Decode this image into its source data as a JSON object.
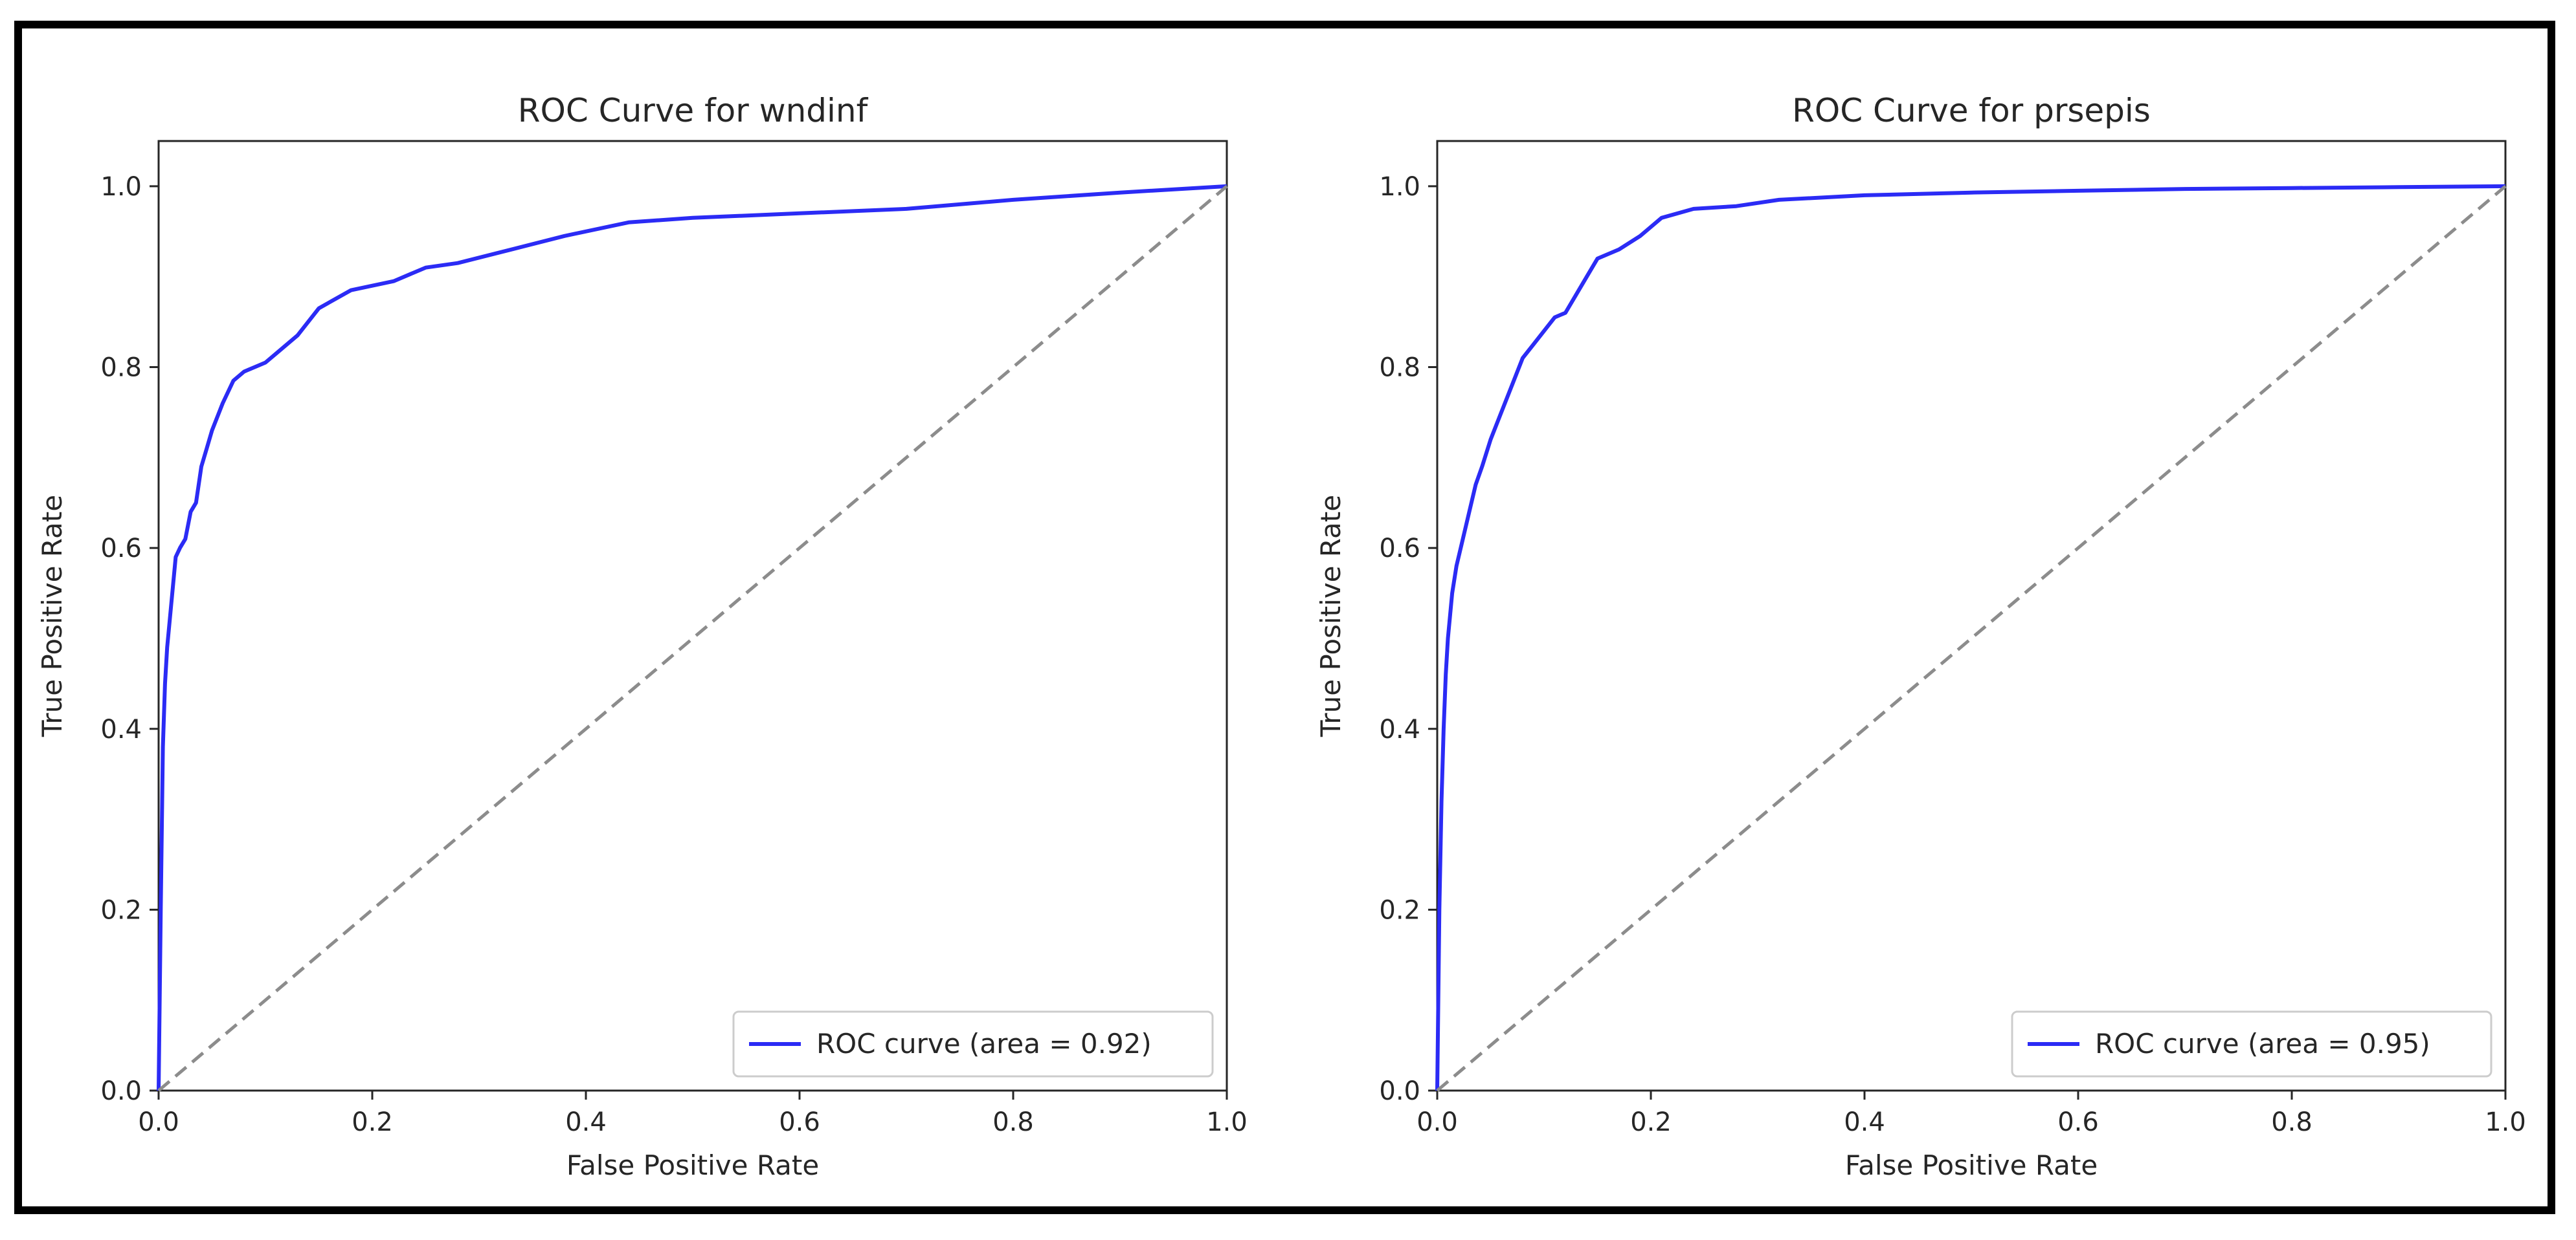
{
  "colors": {
    "curve": "#2b2bf5",
    "diagonal": "#8c8c8c",
    "axes": "#262626"
  },
  "chart_data": [
    {
      "type": "line",
      "title": "ROC Curve for wndinf",
      "xlabel": "False Positive Rate",
      "ylabel": "True Positive Rate",
      "xlim": [
        0.0,
        1.0
      ],
      "ylim": [
        0.0,
        1.05
      ],
      "xticks": [
        "0.0",
        "0.2",
        "0.4",
        "0.6",
        "0.8",
        "1.0"
      ],
      "yticks": [
        "0.0",
        "0.2",
        "0.4",
        "0.6",
        "0.8",
        "1.0"
      ],
      "grid": false,
      "legend_position": "lower right",
      "series": [
        {
          "name": "ROC curve (area = 0.92)",
          "x": [
            0.0,
            0.002,
            0.004,
            0.006,
            0.008,
            0.012,
            0.016,
            0.02,
            0.025,
            0.03,
            0.035,
            0.04,
            0.045,
            0.05,
            0.06,
            0.07,
            0.08,
            0.09,
            0.1,
            0.11,
            0.13,
            0.15,
            0.18,
            0.22,
            0.25,
            0.28,
            0.33,
            0.38,
            0.44,
            0.5,
            0.6,
            0.7,
            0.8,
            0.9,
            1.0
          ],
          "y": [
            0.0,
            0.2,
            0.38,
            0.45,
            0.49,
            0.54,
            0.59,
            0.6,
            0.61,
            0.64,
            0.65,
            0.69,
            0.71,
            0.73,
            0.76,
            0.785,
            0.795,
            0.8,
            0.805,
            0.815,
            0.835,
            0.865,
            0.885,
            0.895,
            0.91,
            0.915,
            0.93,
            0.945,
            0.96,
            0.965,
            0.97,
            0.975,
            0.985,
            0.993,
            1.0
          ]
        },
        {
          "name": "",
          "dashed": true,
          "x": [
            0.0,
            1.0
          ],
          "y": [
            0.0,
            1.0
          ]
        }
      ]
    },
    {
      "type": "line",
      "title": "ROC Curve for prsepis",
      "xlabel": "False Positive Rate",
      "ylabel": "True Positive Rate",
      "xlim": [
        0.0,
        1.0
      ],
      "ylim": [
        0.0,
        1.05
      ],
      "xticks": [
        "0.0",
        "0.2",
        "0.4",
        "0.6",
        "0.8",
        "1.0"
      ],
      "yticks": [
        "0.0",
        "0.2",
        "0.4",
        "0.6",
        "0.8",
        "1.0"
      ],
      "grid": false,
      "legend_position": "lower right",
      "series": [
        {
          "name": "ROC curve (area = 0.95)",
          "x": [
            0.0,
            0.002,
            0.004,
            0.006,
            0.008,
            0.01,
            0.014,
            0.018,
            0.024,
            0.03,
            0.036,
            0.042,
            0.05,
            0.06,
            0.07,
            0.08,
            0.09,
            0.1,
            0.11,
            0.12,
            0.13,
            0.14,
            0.15,
            0.17,
            0.19,
            0.21,
            0.24,
            0.28,
            0.32,
            0.4,
            0.5,
            0.6,
            0.7,
            0.8,
            0.9,
            1.0
          ],
          "y": [
            0.0,
            0.2,
            0.32,
            0.4,
            0.46,
            0.5,
            0.55,
            0.58,
            0.61,
            0.64,
            0.67,
            0.69,
            0.72,
            0.75,
            0.78,
            0.81,
            0.825,
            0.84,
            0.855,
            0.86,
            0.88,
            0.9,
            0.92,
            0.93,
            0.945,
            0.965,
            0.975,
            0.978,
            0.985,
            0.99,
            0.993,
            0.995,
            0.997,
            0.998,
            0.999,
            1.0
          ]
        },
        {
          "name": "",
          "dashed": true,
          "x": [
            0.0,
            1.0
          ],
          "y": [
            0.0,
            1.0
          ]
        }
      ]
    }
  ]
}
